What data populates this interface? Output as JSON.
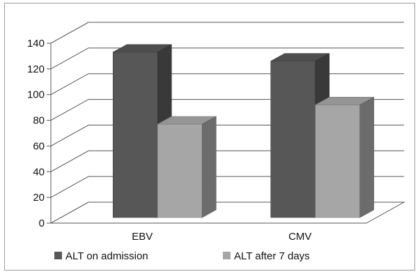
{
  "chart_data": {
    "type": "bar",
    "title": "",
    "xlabel": "",
    "ylabel": "",
    "categories": [
      "EBV",
      "CMV"
    ],
    "series": [
      {
        "name": "ALT on admission",
        "values": [
          126,
          119
        ],
        "color": "#575757"
      },
      {
        "name": "ALT after 7 days",
        "values": [
          70,
          85
        ],
        "color": "#a6a6a6"
      }
    ],
    "ylim": [
      0,
      140
    ],
    "yticks": [
      0,
      20,
      40,
      60,
      80,
      100,
      120,
      140
    ],
    "grid": true,
    "legend": "bottom",
    "style": "3d-column"
  }
}
